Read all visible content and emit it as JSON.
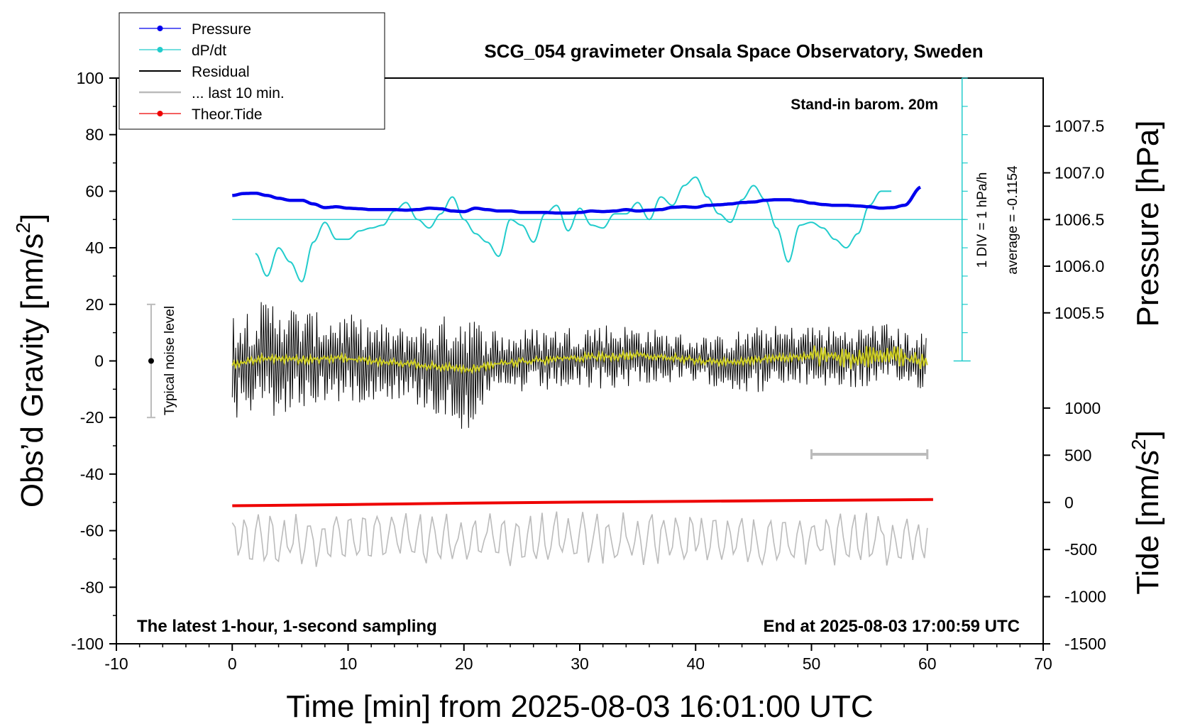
{
  "chart_data": {
    "type": "line",
    "title": "SCG_054 gravimeter Onsala Space Observatory, Sweden",
    "xlabel": "Time [min] from 2025-08-03 16:01:00 UTC",
    "ylabel": "Obs’d Gravity [nm/s",
    "ylabel_sup": "2",
    "ylabel_close": "]",
    "y2label": "Pressure [hPa]",
    "y3label": "Tide [nm/s",
    "y3label_sup": "2",
    "y3label_close": "]",
    "xlim": [
      -10,
      70
    ],
    "ylim": [
      -100,
      100
    ],
    "x_ticks": [
      "-10",
      "0",
      "10",
      "20",
      "30",
      "40",
      "50",
      "60",
      "70"
    ],
    "y_ticks": [
      "100",
      "80",
      "60",
      "40",
      "20",
      "0",
      "-20",
      "-40",
      "-60",
      "-80",
      "-100"
    ],
    "pressure_ticks": [
      "1007.5",
      "1007.0",
      "1006.5",
      "1006.0",
      "1005.5"
    ],
    "pressure_tick_values": [
      1007.5,
      1007.0,
      1006.5,
      1006.0,
      1005.5
    ],
    "pressure_axis_map": {
      "gravity_at_1006_5": 50,
      "gravity_per_hPa": 33
    },
    "tide_ticks": [
      "1000",
      "500",
      "0",
      "-500",
      "-1000",
      "-1500"
    ],
    "tide_tick_values": [
      1000,
      500,
      0,
      -500,
      -1000,
      -1500
    ],
    "tide_axis_map": {
      "gravity_at_0": -50,
      "gravity_per_500": 16.67
    },
    "legend": [
      {
        "label": "Pressure",
        "color": "#0000ee",
        "marker": true
      },
      {
        "label": "dP/dt",
        "color": "#22cccc",
        "marker": true
      },
      {
        "label": "Residual",
        "color": "#000000",
        "marker": false
      },
      {
        "label": "... last 10 min.",
        "color": "#bbbbbb",
        "marker": false
      },
      {
        "label": "Theor.Tide",
        "color": "#ee0000",
        "marker": true
      }
    ],
    "annotations": {
      "barometer": "Stand-in barom. 20m",
      "scale_div": "1 DIV = 1 hPa/h",
      "average": "average = -0.1154",
      "noise": "Typical noise level",
      "bottom_left": "The latest 1-hour, 1-second sampling",
      "bottom_right": "End at 2025-08-03 17:00:59 UTC"
    },
    "noise_bar": {
      "x": -7,
      "center": 0,
      "low": -20,
      "high": 20
    },
    "last10_bar": {
      "x_start": 50,
      "x_end": 60,
      "y": -33
    },
    "dpdt_scale_line": {
      "x": 63,
      "y_top": 100,
      "y_bottom": 0,
      "zero_level": 50,
      "div_step": 10
    },
    "series": [
      {
        "name": "Pressure",
        "color": "#0000ee",
        "x": [
          0,
          1,
          2,
          3,
          4,
          5,
          6,
          7,
          8,
          9,
          10,
          11,
          12,
          13,
          14,
          15,
          16,
          17,
          18,
          19,
          20,
          21,
          22,
          23,
          24,
          25,
          26,
          27,
          28,
          29,
          30,
          31,
          32,
          33,
          34,
          35,
          36,
          37,
          38,
          39,
          40,
          41,
          42,
          43,
          44,
          45,
          46,
          47,
          48,
          49,
          50,
          51,
          52,
          53,
          54,
          55,
          56,
          57,
          58,
          59.5
        ],
        "values": [
          58.5,
          59.2,
          59.3,
          58.5,
          57.5,
          56.8,
          56.8,
          55.5,
          54.2,
          54.5,
          54.0,
          53.8,
          53.5,
          53.5,
          53.5,
          53.3,
          53.5,
          54.0,
          53.8,
          53.0,
          52.8,
          54.0,
          53.5,
          53.0,
          53.0,
          52.5,
          52.5,
          52.5,
          52.3,
          52.3,
          52.5,
          53.0,
          52.8,
          53.0,
          53.5,
          53.0,
          53.3,
          53.5,
          54.3,
          54.5,
          54.3,
          55.0,
          55.2,
          55.5,
          56.0,
          56.2,
          56.8,
          57.0,
          57.0,
          56.5,
          55.8,
          55.3,
          55.0,
          55.0,
          54.8,
          54.5,
          54.0,
          54.2,
          55.0,
          61.5
        ]
      },
      {
        "name": "dP/dt",
        "color": "#22cccc",
        "x": [
          2,
          3,
          4,
          5,
          6,
          7,
          8,
          9,
          10,
          11,
          12,
          13,
          14,
          15,
          16,
          17,
          18,
          19,
          20,
          21,
          22,
          23,
          24,
          25,
          26,
          27,
          28,
          29,
          30,
          31,
          32,
          33,
          34,
          35,
          36,
          37,
          38,
          39,
          40,
          41,
          42,
          43,
          44,
          45,
          46,
          47,
          48,
          49,
          50,
          51,
          52,
          53,
          54,
          55,
          56,
          57
        ],
        "values": [
          38,
          30,
          40,
          35,
          28,
          42,
          49,
          43,
          43,
          46,
          47,
          48,
          53,
          56,
          50,
          47,
          52,
          58,
          50,
          45,
          42,
          37,
          50,
          48,
          42,
          52,
          55,
          46,
          54,
          48,
          47,
          52,
          52,
          56,
          50,
          58,
          55,
          62,
          65,
          58,
          52,
          49,
          57,
          62,
          57,
          47,
          35,
          48,
          49,
          47,
          43,
          40,
          45,
          55,
          60,
          60
        ]
      },
      {
        "name": "Residual",
        "color": "#000000",
        "x_range": [
          0,
          60
        ],
        "step": 0.1,
        "envelope": {
          "x": [
            0,
            2,
            4,
            6,
            8,
            10,
            12,
            14,
            16,
            18,
            20,
            22,
            24,
            26,
            28,
            30,
            32,
            34,
            36,
            38,
            40,
            42,
            44,
            46,
            48,
            50,
            52,
            54,
            56,
            58,
            60
          ],
          "amplitude": [
            20,
            20,
            22,
            18,
            16,
            16,
            14,
            13,
            15,
            18,
            22,
            14,
            11,
            12,
            11,
            12,
            12,
            11,
            10,
            9,
            9,
            9,
            11,
            12,
            11,
            11,
            11,
            11,
            12,
            10,
            10
          ]
        },
        "smoothed": {
          "name": "Residual smoothed",
          "color": "#cccc22",
          "x": [
            0,
            3,
            6,
            9,
            12,
            15,
            18,
            20,
            23,
            26,
            29,
            32,
            35,
            38,
            41,
            44,
            47,
            50,
            53,
            56,
            60
          ],
          "values": [
            -1,
            1,
            0.5,
            1,
            0,
            -1,
            -2,
            -3,
            -1,
            0,
            1,
            1.5,
            2,
            1,
            0,
            0,
            1,
            2,
            1,
            2,
            0
          ]
        }
      },
      {
        "name": "Theor.Tide",
        "color": "#ee0000",
        "x": [
          0,
          10,
          20,
          30,
          40,
          50,
          60.5
        ],
        "values": [
          -51.2,
          -50.8,
          -50.3,
          -49.9,
          -49.6,
          -49.3,
          -49.0
        ]
      },
      {
        "name": "... last 10 min.",
        "color": "#bbbbbb",
        "x_range": [
          0,
          60
        ],
        "step": 0.25,
        "center": -63,
        "amplitude": 10
      }
    ]
  }
}
